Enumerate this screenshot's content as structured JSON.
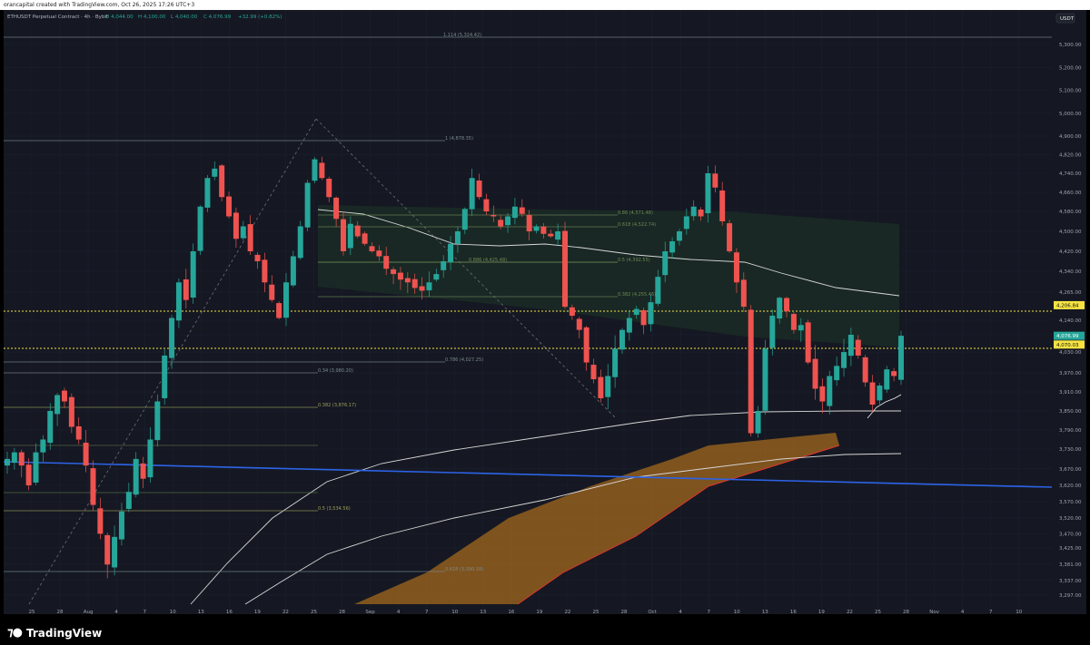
{
  "header": {
    "caption": "orancapital created with TradingView.com, Oct 26, 2025 17:26 UTC+3"
  },
  "legend": {
    "symbol": "ETHUSDT Perpetual Contract · 4h · Bybit",
    "o": "O 4,044.00",
    "h": "H 4,100.00",
    "l": "L 4,040.00",
    "c": "C 4,076.99",
    "chg": "+32.99 (+0.82%)"
  },
  "currency_button": "USDT",
  "brand": "TradingView",
  "chart_data": {
    "type": "line",
    "title": "ETHUSDT Perpetual Contract · 4h · Bybit",
    "y_ticks": [
      5300,
      5200,
      5100,
      5000,
      4900,
      4820,
      4740,
      4660,
      4580,
      4500,
      4420,
      4340,
      4265,
      4140,
      4080,
      4030,
      3970,
      3910,
      3850,
      3790,
      3730,
      3670,
      3620,
      3570,
      3520,
      3470,
      3425,
      3381,
      3337,
      3297
    ],
    "y_tick_labels": [
      "5,300.00",
      "5,200.00",
      "5,100.00",
      "5,000.00",
      "4,900.00",
      "4,820.00",
      "4,740.00",
      "4,660.00",
      "4,580.00",
      "4,500.00",
      "4,420.00",
      "4,340.00",
      "4,265.00",
      "4,140.00",
      "4,080.00",
      "4,030.00",
      "3,970.00",
      "3,910.00",
      "3,850.00",
      "3,790.00",
      "3,730.00",
      "3,670.00",
      "3,620.00",
      "3,570.00",
      "3,520.00",
      "3,470.00",
      "3,425.00",
      "3,381.00",
      "3,337.00",
      "3,297.00"
    ],
    "x_tick_labels": [
      "25",
      "28",
      "Aug",
      "4",
      "7",
      "10",
      "13",
      "16",
      "19",
      "22",
      "25",
      "28",
      "Sep",
      "4",
      "7",
      "10",
      "13",
      "16",
      "19",
      "22",
      "25",
      "28",
      "Oct",
      "4",
      "7",
      "10",
      "13",
      "16",
      "19",
      "22",
      "25",
      "28",
      "Nov",
      "4",
      "7",
      "10"
    ],
    "price_tags": [
      {
        "label": "4,206.84",
        "color": "#f5e342"
      },
      {
        "label": "4,076.99",
        "color": "#26a69a"
      },
      {
        "label": "4,070.03",
        "color": "#f5e342"
      }
    ],
    "fib_labels": [
      {
        "text": "1.114 (5,324.42)",
        "color": "#7b8a8f"
      },
      {
        "text": "1 (4,878.35)",
        "color": "#7b8a8f"
      },
      {
        "text": "0.786 (4,027.25)",
        "color": "#7b8a8f"
      },
      {
        "text": "0.34 (3,980.20)",
        "color": "#7b8a8f"
      },
      {
        "text": "0.382 (3,876.17)",
        "color": "#9aa05a"
      },
      {
        "text": "0.5 (3,534.56)",
        "color": "#9aa05a"
      },
      {
        "text": "0.618 (3,390.18)",
        "color": "#7b8a8f"
      },
      {
        "text": "0.86 (4,571.48)",
        "color": "#6e8a55"
      },
      {
        "text": "0.618 (4,522.74)",
        "color": "#6e8a55"
      },
      {
        "text": "0.886 (4,425.48)",
        "color": "#6e8a55"
      },
      {
        "text": "0.5 (4,392.55)",
        "color": "#6e8a55"
      },
      {
        "text": "0.382 (4,255.46)",
        "color": "#6e8a55"
      }
    ],
    "levels": [
      4206.84,
      4070.03
    ],
    "last_price": 4076.99,
    "closes": [
      3700,
      3720,
      3680,
      3620,
      3720,
      3760,
      3850,
      3900,
      3880,
      3800,
      3760,
      3680,
      3560,
      3470,
      3380,
      3460,
      3540,
      3600,
      3700,
      3640,
      3760,
      3880,
      4020,
      4150,
      4300,
      4230,
      4420,
      4600,
      4720,
      4760,
      4640,
      4560,
      4470,
      4520,
      4420,
      4380,
      4300,
      4230,
      4150,
      4300,
      4400,
      4520,
      4700,
      4800,
      4720,
      4640,
      4550,
      4420,
      4530,
      4480,
      4450,
      4420,
      4400,
      4350,
      4330,
      4310,
      4300,
      4280,
      4270,
      4300,
      4330,
      4380,
      4450,
      4500,
      4590,
      4720,
      4640,
      4580,
      4560,
      4520,
      4560,
      4600,
      4570,
      4500,
      4520,
      4490,
      4480,
      4500,
      4200,
      4160,
      4100,
      4000,
      3950,
      3890,
      3960,
      4040,
      4100,
      4150,
      4190,
      4120,
      4220,
      4320,
      4420,
      4460,
      4500,
      4560,
      4600,
      4560,
      4740,
      4680,
      4540,
      4420,
      4300,
      4200,
      3780,
      3850,
      4040,
      4160,
      4240,
      4180,
      4100,
      4120,
      4000,
      3920,
      3880,
      3960,
      3990,
      4030,
      4080,
      4020,
      3940,
      3870,
      3930,
      3980,
      3960,
      4077
    ]
  }
}
